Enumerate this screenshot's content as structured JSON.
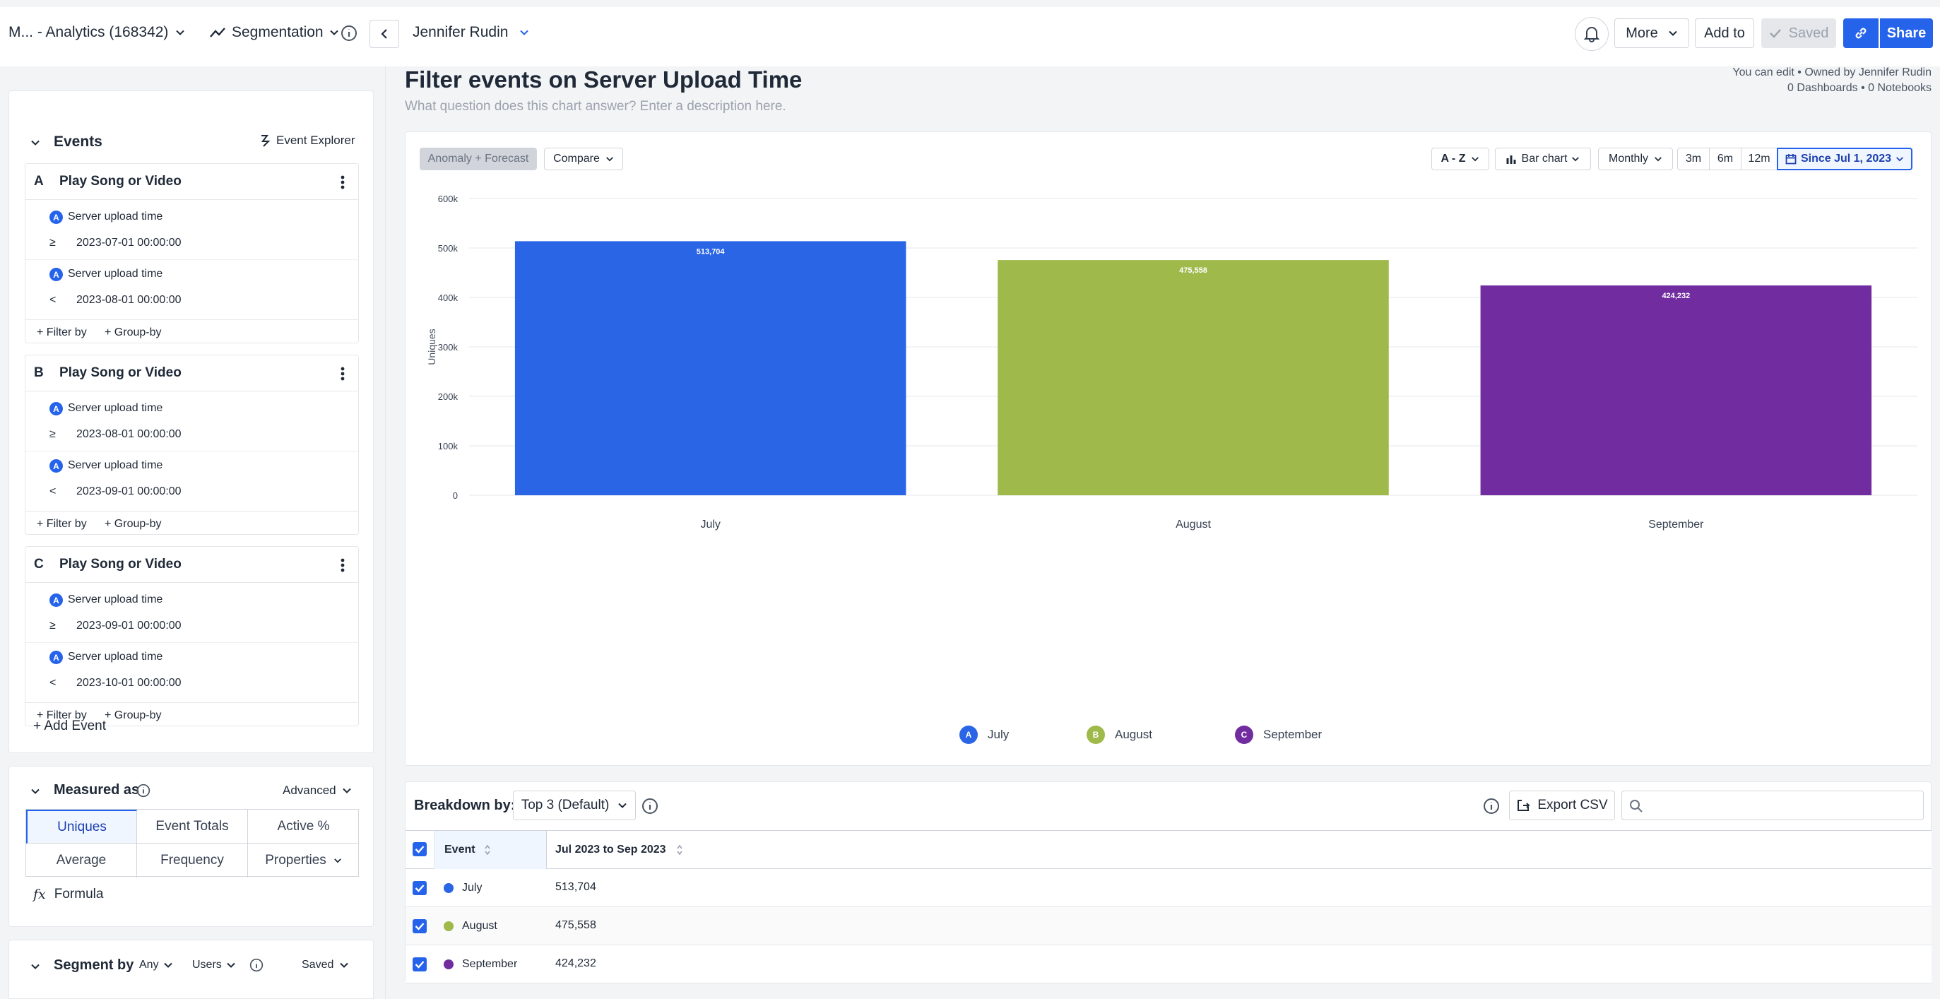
{
  "topbar": {
    "project": "M... - Analytics (168342)",
    "chart_type": "Segmentation",
    "owner": "Jennifer Rudin",
    "more": "More",
    "add_to": "Add to",
    "saved": "Saved",
    "share": "Share"
  },
  "chart_header": {
    "title": "Filter events on Server Upload Time",
    "description_placeholder": "What question does this chart answer? Enter a description here.",
    "permissions": "You can edit • Owned by Jennifer Rudin",
    "stats": "0 Dashboards • 0 Notebooks"
  },
  "events_panel": {
    "heading": "Events",
    "explorer": "Event Explorer",
    "add_event": "+ Add Event",
    "filter_by": "+ Filter by",
    "group_by": "+ Group-by",
    "events": [
      {
        "letter": "A",
        "name": "Play Song or Video",
        "filters": [
          {
            "property": "Server upload time",
            "op": "≥",
            "value": "2023-07-01 00:00:00"
          },
          {
            "property": "Server upload time",
            "op": "<",
            "value": "2023-08-01 00:00:00"
          }
        ]
      },
      {
        "letter": "B",
        "name": "Play Song or Video",
        "filters": [
          {
            "property": "Server upload time",
            "op": "≥",
            "value": "2023-08-01 00:00:00"
          },
          {
            "property": "Server upload time",
            "op": "<",
            "value": "2023-09-01 00:00:00"
          }
        ]
      },
      {
        "letter": "C",
        "name": "Play Song or Video",
        "filters": [
          {
            "property": "Server upload time",
            "op": "≥",
            "value": "2023-09-01 00:00:00"
          },
          {
            "property": "Server upload time",
            "op": "<",
            "value": "2023-10-01 00:00:00"
          }
        ]
      }
    ]
  },
  "measured_as": {
    "heading": "Measured as",
    "advanced": "Advanced",
    "options": [
      "Uniques",
      "Event Totals",
      "Active %",
      "Average",
      "Frequency",
      "Properties"
    ],
    "selected": "Uniques",
    "formula": "Formula"
  },
  "segment_by": {
    "heading": "Segment by",
    "any": "Any",
    "users": "Users",
    "saved": "Saved"
  },
  "chart_controls": {
    "anomaly": "Anomaly + Forecast",
    "compare": "Compare",
    "sort": "A - Z",
    "chart_kind": "Bar chart",
    "interval": "Monthly",
    "ranges": [
      "3m",
      "6m",
      "12m"
    ],
    "since": "Since Jul 1, 2023"
  },
  "chart_data": {
    "type": "bar",
    "ylabel": "Uniques",
    "ylim": [
      0,
      600000
    ],
    "yticks": [
      "0",
      "100k",
      "200k",
      "300k",
      "400k",
      "500k",
      "600k"
    ],
    "categories": [
      "July",
      "August",
      "September"
    ],
    "values": [
      513704,
      475558,
      424232
    ],
    "value_labels": [
      "513,704",
      "475,558",
      "424,232"
    ],
    "colors": [
      "#2a65e6",
      "#9fb94a",
      "#712da0"
    ],
    "legend": [
      {
        "letter": "A",
        "label": "July"
      },
      {
        "letter": "B",
        "label": "August"
      },
      {
        "letter": "C",
        "label": "September"
      }
    ]
  },
  "breakdown": {
    "label": "Breakdown by:",
    "selection": "Top 3 (Default)",
    "export": "Export CSV",
    "columns": [
      "Event",
      "Jul 2023 to Sep 2023"
    ],
    "rows": [
      {
        "event": "July",
        "value": "513,704",
        "color": "#2a65e6"
      },
      {
        "event": "August",
        "value": "475,558",
        "color": "#9fb94a"
      },
      {
        "event": "September",
        "value": "424,232",
        "color": "#712da0"
      }
    ]
  }
}
